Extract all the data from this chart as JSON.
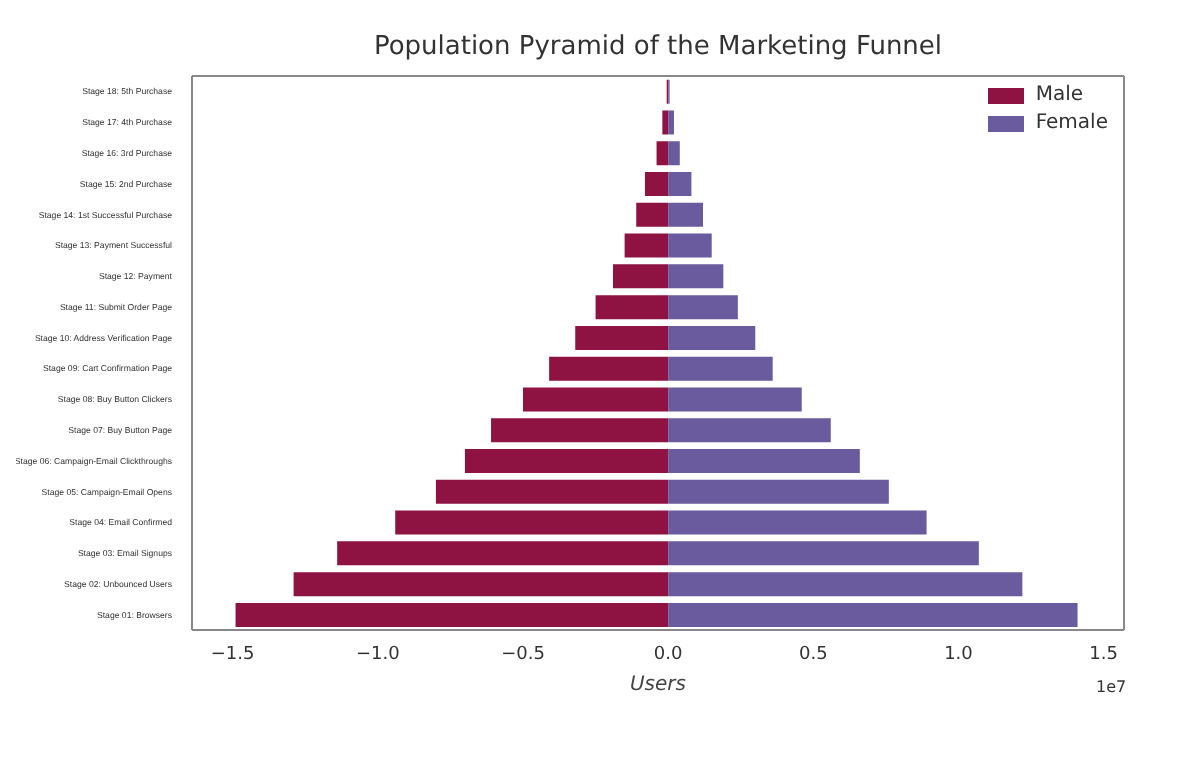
{
  "chart_data": {
    "type": "bar",
    "orientation": "horizontal",
    "stacked": true,
    "title": "Population Pyramid of the Marketing Funnel",
    "xlabel": "Users",
    "categories": [
      "Stage 18: 5th Purchase",
      "Stage 17: 4th Purchase",
      "Stage 16: 3rd Purchase",
      "Stage 15: 2nd Purchase",
      "Stage 14: 1st Successful Purchase",
      "Stage 13: Payment Successful",
      "Stage 12: Payment",
      "Stage 11: Submit Order Page",
      "Stage 10: Address Verification Page",
      "Stage 09: Cart Confirmation Page",
      "Stage 08: Buy Button Clickers",
      "Stage 07: Buy Button Page",
      "Stage 06: Campaign-Email Clickthroughs",
      "Stage 05: Campaign-Email Opens",
      "Stage 04: Email Confirmed",
      "Stage 03: Email Signups",
      "Stage 02: Unbounced Users",
      "Stage 01: Browsers"
    ],
    "series": [
      {
        "name": "Male",
        "color": "#8e1242",
        "values": [
          -0.005,
          -0.02,
          -0.04,
          -0.08,
          -0.11,
          -0.15,
          -0.19,
          -0.25,
          -0.32,
          -0.41,
          -0.5,
          -0.61,
          -0.7,
          -0.8,
          -0.94,
          -1.14,
          -1.29,
          -1.49
        ]
      },
      {
        "name": "Female",
        "color": "#6a5a9e",
        "values": [
          0.005,
          0.02,
          0.04,
          0.08,
          0.12,
          0.15,
          0.19,
          0.24,
          0.3,
          0.36,
          0.46,
          0.56,
          0.66,
          0.76,
          0.89,
          1.07,
          1.22,
          1.41
        ]
      }
    ],
    "xlim": [
      -1.64,
      1.57
    ],
    "xticks": [
      {
        "value": -1.5,
        "label": "−1.5"
      },
      {
        "value": -1.0,
        "label": "−1.0"
      },
      {
        "value": -0.5,
        "label": "−0.5"
      },
      {
        "value": 0,
        "label": "0.0"
      },
      {
        "value": 0.5,
        "label": "0.5"
      },
      {
        "value": 1.0,
        "label": "1.0"
      },
      {
        "value": 1.5,
        "label": "1.5"
      }
    ],
    "annotations": [
      "1e7"
    ],
    "legend": "top right"
  }
}
